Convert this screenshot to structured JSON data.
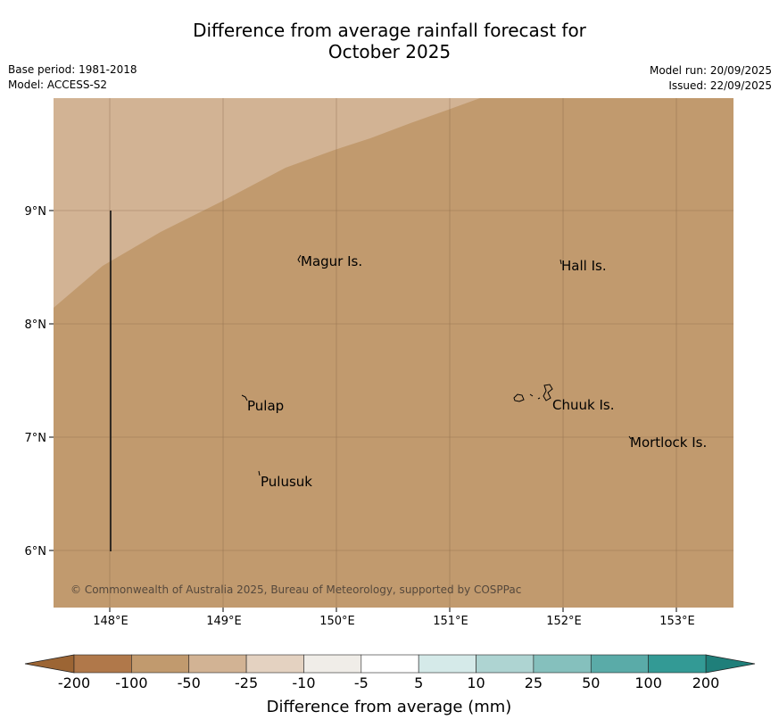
{
  "title": {
    "line1": "Difference from average rainfall forecast for",
    "line2": "October 2025"
  },
  "meta": {
    "base_period": "Base period: 1981-2018",
    "model": "Model: ACCESS-S2",
    "model_run": "Model run: 20/09/2025",
    "issued": "Issued: 22/09/2025"
  },
  "map": {
    "lat_ticks": [
      "9°N",
      "8°N",
      "7°N",
      "6°N"
    ],
    "lon_ticks": [
      "148°E",
      "149°E",
      "150°E",
      "151°E",
      "152°E",
      "153°E"
    ],
    "islands": [
      {
        "name": "Magur Is."
      },
      {
        "name": "Hall Is."
      },
      {
        "name": "Pulap"
      },
      {
        "name": "Chuuk Is."
      },
      {
        "name": "Mortlock Is."
      },
      {
        "name": "Pulusuk"
      }
    ],
    "copyright": "© Commonwealth of Australia 2025, Bureau of Meteorology, supported by COSPPac",
    "colors": {
      "minus_50_to_100": "#c19a6e",
      "minus_25_to_50": "#d2b394",
      "gridline": "#7a5a3e"
    }
  },
  "colorbar": {
    "title": "Difference from average (mm)",
    "labels": [
      "-200",
      "-100",
      "-50",
      "-25",
      "-10",
      "-5",
      "5",
      "10",
      "25",
      "50",
      "100",
      "200"
    ],
    "colors": [
      "#b0784a",
      "#c19a6e",
      "#d2b394",
      "#e4d2c1",
      "#f0ede8",
      "#ffffff",
      "#d5eae9",
      "#aed4d2",
      "#85c0bd",
      "#5aaba8",
      "#339a95"
    ],
    "extend_low_color": "#9c6534",
    "extend_high_color": "#1f7f7a"
  }
}
